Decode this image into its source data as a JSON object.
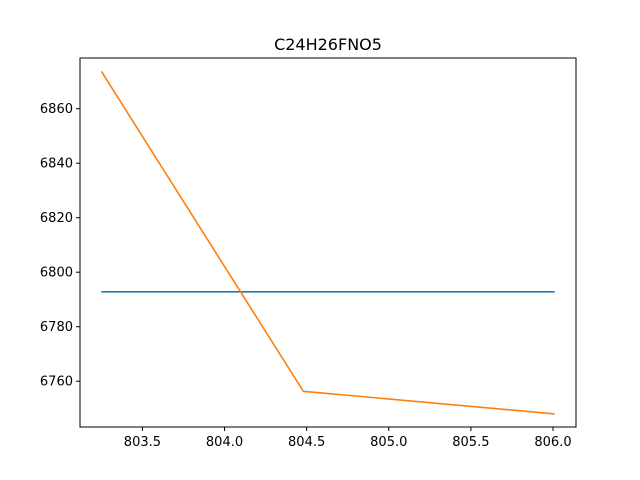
{
  "chart_data": {
    "type": "line",
    "title": "C24H26FNO5",
    "xlabel": "",
    "ylabel": "",
    "xlim": [
      803.12,
      806.14
    ],
    "ylim": [
      6743.2,
      6878.6
    ],
    "grid": false,
    "x_ticks": [
      803.5,
      804.0,
      804.5,
      805.0,
      805.5,
      806.0
    ],
    "x_tick_labels": [
      "803.5",
      "804.0",
      "804.5",
      "805.0",
      "805.5",
      "806.0"
    ],
    "y_ticks": [
      6760,
      6780,
      6800,
      6820,
      6840,
      6860
    ],
    "y_tick_labels": [
      "6760",
      "6780",
      "6800",
      "6820",
      "6840",
      "6860"
    ],
    "series": [
      {
        "color": "#1f77b4",
        "x": [
          803.25,
          806.01
        ],
        "y": [
          6792.8,
          6792.8
        ]
      },
      {
        "color": "#ff7f0e",
        "x": [
          803.25,
          804.48,
          806.01
        ],
        "y": [
          6873.7,
          6756.3,
          6748.0
        ]
      }
    ]
  }
}
